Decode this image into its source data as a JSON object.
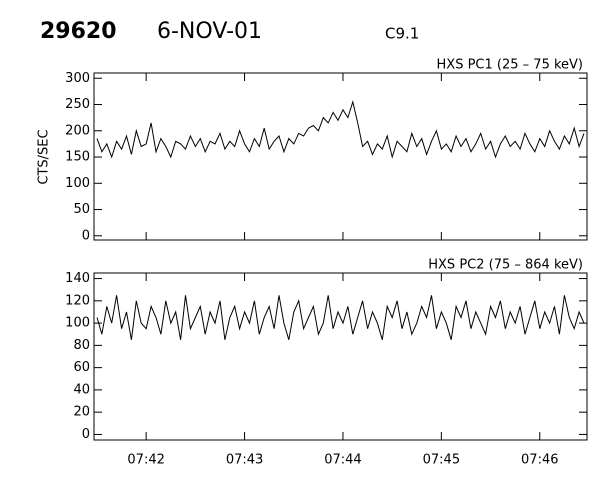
{
  "chart_data": [
    {
      "type": "line",
      "title": "29620",
      "subtitle": "6-NOV-01",
      "annotation": "C9.1",
      "label": "HXS PC1 (25 – 75 keV)",
      "ylabel": "CTS/SEC",
      "color": "#000000",
      "xlim": [
        461.47,
        466.48
      ],
      "xticks": [
        462,
        463,
        464,
        465,
        466
      ],
      "ylim": [
        -8,
        310
      ],
      "yticks": [
        0,
        50,
        100,
        150,
        200,
        250,
        300
      ],
      "x": [
        461.5,
        461.55,
        461.6,
        461.65,
        461.7,
        461.75,
        461.8,
        461.85,
        461.9,
        461.95,
        462,
        462.05,
        462.1,
        462.15,
        462.2,
        462.25,
        462.3,
        462.35,
        462.4,
        462.45,
        462.5,
        462.55,
        462.6,
        462.65,
        462.7,
        462.75,
        462.8,
        462.85,
        462.9,
        462.95,
        463,
        463.05,
        463.1,
        463.15,
        463.2,
        463.25,
        463.3,
        463.35,
        463.4,
        463.45,
        463.5,
        463.55,
        463.6,
        463.65,
        463.7,
        463.75,
        463.8,
        463.85,
        463.9,
        463.95,
        464,
        464.05,
        464.1,
        464.15,
        464.2,
        464.25,
        464.3,
        464.35,
        464.4,
        464.45,
        464.5,
        464.55,
        464.6,
        464.65,
        464.7,
        464.75,
        464.8,
        464.85,
        464.9,
        464.95,
        465,
        465.05,
        465.1,
        465.15,
        465.2,
        465.25,
        465.3,
        465.35,
        465.4,
        465.45,
        465.5,
        465.55,
        465.6,
        465.65,
        465.7,
        465.75,
        465.8,
        465.85,
        465.9,
        465.95,
        466,
        466.05,
        466.1,
        466.15,
        466.2,
        466.25,
        466.3,
        466.35,
        466.4,
        466.45
      ],
      "values": [
        185,
        160,
        175,
        150,
        180,
        165,
        190,
        155,
        200,
        170,
        175,
        215,
        160,
        185,
        170,
        150,
        180,
        175,
        165,
        190,
        170,
        185,
        160,
        180,
        175,
        195,
        165,
        180,
        170,
        200,
        175,
        160,
        185,
        170,
        205,
        165,
        180,
        190,
        160,
        185,
        175,
        195,
        190,
        205,
        210,
        200,
        225,
        215,
        235,
        220,
        240,
        225,
        255,
        215,
        170,
        180,
        155,
        175,
        165,
        190,
        150,
        180,
        170,
        160,
        195,
        170,
        185,
        155,
        180,
        200,
        165,
        175,
        160,
        190,
        170,
        185,
        160,
        175,
        195,
        165,
        180,
        150,
        175,
        190,
        170,
        180,
        165,
        195,
        175,
        160,
        185,
        170,
        200,
        180,
        165,
        190,
        175,
        205,
        170,
        195
      ]
    },
    {
      "type": "line",
      "label": "HXS PC2 (75 – 864 keV)",
      "color": "#000000",
      "xlim": [
        461.47,
        466.48
      ],
      "xticks": [
        {
          "value": 462,
          "label": "07:42"
        },
        {
          "value": 463,
          "label": "07:43"
        },
        {
          "value": 464,
          "label": "07:44"
        },
        {
          "value": 465,
          "label": "07:45"
        },
        {
          "value": 466,
          "label": "07:46"
        }
      ],
      "ylim": [
        -5,
        145
      ],
      "yticks": [
        0,
        20,
        40,
        60,
        80,
        100,
        120,
        140
      ],
      "x": [
        461.5,
        461.55,
        461.6,
        461.65,
        461.7,
        461.75,
        461.8,
        461.85,
        461.9,
        461.95,
        462,
        462.05,
        462.1,
        462.15,
        462.2,
        462.25,
        462.3,
        462.35,
        462.4,
        462.45,
        462.5,
        462.55,
        462.6,
        462.65,
        462.7,
        462.75,
        462.8,
        462.85,
        462.9,
        462.95,
        463,
        463.05,
        463.1,
        463.15,
        463.2,
        463.25,
        463.3,
        463.35,
        463.4,
        463.45,
        463.5,
        463.55,
        463.6,
        463.65,
        463.7,
        463.75,
        463.8,
        463.85,
        463.9,
        463.95,
        464,
        464.05,
        464.1,
        464.15,
        464.2,
        464.25,
        464.3,
        464.35,
        464.4,
        464.45,
        464.5,
        464.55,
        464.6,
        464.65,
        464.7,
        464.75,
        464.8,
        464.85,
        464.9,
        464.95,
        465,
        465.05,
        465.1,
        465.15,
        465.2,
        465.25,
        465.3,
        465.35,
        465.4,
        465.45,
        465.5,
        465.55,
        465.6,
        465.65,
        465.7,
        465.75,
        465.8,
        465.85,
        465.9,
        465.95,
        466,
        466.05,
        466.1,
        466.15,
        466.2,
        466.25,
        466.3,
        466.35,
        466.4,
        466.45
      ],
      "values": [
        105,
        90,
        115,
        100,
        125,
        95,
        110,
        85,
        120,
        100,
        95,
        115,
        105,
        90,
        120,
        100,
        110,
        85,
        125,
        95,
        105,
        115,
        90,
        110,
        100,
        120,
        85,
        105,
        115,
        95,
        110,
        100,
        120,
        90,
        105,
        115,
        95,
        125,
        100,
        85,
        110,
        120,
        95,
        105,
        115,
        90,
        100,
        125,
        95,
        110,
        100,
        115,
        90,
        105,
        120,
        95,
        110,
        100,
        85,
        115,
        105,
        120,
        95,
        110,
        90,
        100,
        115,
        105,
        125,
        95,
        110,
        100,
        85,
        115,
        105,
        120,
        95,
        110,
        100,
        90,
        115,
        105,
        120,
        95,
        110,
        100,
        115,
        90,
        105,
        120,
        95,
        110,
        100,
        115,
        90,
        125,
        105,
        95,
        110,
        100
      ]
    }
  ]
}
